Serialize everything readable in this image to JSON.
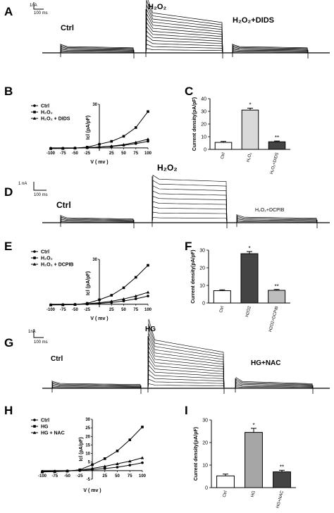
{
  "panel_letters": {
    "A": "A",
    "B": "B",
    "C": "C",
    "D": "D",
    "E": "E",
    "F": "F",
    "G": "G",
    "H": "H",
    "I": "I"
  },
  "traces": {
    "A": {
      "scale_current": "1nA",
      "scale_time": "100 ms",
      "ctrl": "Ctrl",
      "mid": "H₂O₂",
      "right": "H₂O₂+DIDS"
    },
    "D": {
      "scale_current": "1 nA",
      "scale_time": "100 ms",
      "ctrl": "Ctrl",
      "mid": "H₂O₂",
      "right": "H₂O₂+DCPIB"
    },
    "G": {
      "scale_current": "1nA",
      "scale_time": "100 ms",
      "ctrl": "Ctrl",
      "mid": "HG",
      "right": "HG+NAC"
    }
  },
  "chart_data": [
    {
      "panel": "B",
      "type": "line",
      "xlabel": "V ( mv )",
      "ylabel": "Icl (pA/pF)",
      "xlim": [
        -100,
        100
      ],
      "ylim": [
        -2,
        30
      ],
      "x_ticks": [
        "-100",
        "-75",
        "-50",
        "-25",
        "",
        "25",
        "50",
        "75",
        "100"
      ],
      "y_ticks": [
        "30"
      ],
      "x": [
        -100,
        -75,
        -50,
        -25,
        0,
        25,
        50,
        75,
        100
      ],
      "series": [
        {
          "name": "Ctrl",
          "marker": "circle",
          "values": [
            -0.2,
            -0.2,
            -0.1,
            0.2,
            0.5,
            1.0,
            1.8,
            3.0,
            4.5
          ]
        },
        {
          "name": "H₂O₂",
          "marker": "square",
          "values": [
            -0.5,
            -0.4,
            -0.2,
            0.5,
            2.5,
            4.5,
            8.0,
            14.0,
            25.0
          ]
        },
        {
          "name": "H₂O₂ + DIDS",
          "marker": "triangle",
          "values": [
            -0.3,
            -0.3,
            -0.1,
            0.2,
            0.6,
            1.2,
            2.2,
            3.8,
            6.0
          ]
        }
      ]
    },
    {
      "panel": "C",
      "type": "bar",
      "ylabel": "Current density(pA/pF)",
      "ylim": [
        0,
        40
      ],
      "y_ticks": [
        "0",
        "10",
        "20",
        "30",
        "40"
      ],
      "categories": [
        "Ctrl",
        "H₂O₂",
        "H₂O₂+DIDS"
      ],
      "values": [
        5.5,
        31,
        6
      ],
      "errors": [
        0.8,
        1.5,
        0.6
      ],
      "sig": [
        "",
        "*",
        "**"
      ],
      "colors": [
        "#ffffff",
        "#d9d9d9",
        "#444444"
      ]
    },
    {
      "panel": "E",
      "type": "line",
      "xlabel": "V ( mv )",
      "ylabel": "Icl (pA/pF)",
      "xlim": [
        -100,
        100
      ],
      "ylim": [
        -2,
        30
      ],
      "x_ticks": [
        "-100",
        "-75",
        "-50",
        "-25",
        "",
        "25",
        "50",
        "75",
        "100"
      ],
      "y_ticks": [
        "30"
      ],
      "x": [
        -100,
        -75,
        -50,
        -25,
        0,
        25,
        50,
        75,
        100
      ],
      "series": [
        {
          "name": "Ctrl",
          "marker": "circle",
          "values": [
            -0.3,
            -0.2,
            -0.1,
            0.2,
            0.6,
            1.2,
            2.2,
            3.6,
            5.5
          ]
        },
        {
          "name": "H₂O₂",
          "marker": "square",
          "values": [
            -0.5,
            -0.4,
            -0.2,
            0.6,
            3.0,
            6.0,
            11.0,
            18.0,
            26.0
          ]
        },
        {
          "name": "H₂O₂ + DCPIB",
          "marker": "triangle",
          "values": [
            -0.3,
            -0.3,
            -0.1,
            0.3,
            1.0,
            2.0,
            3.5,
            5.5,
            8.0
          ]
        }
      ]
    },
    {
      "panel": "F",
      "type": "bar",
      "ylabel": "Current density(pA/pF)",
      "ylim": [
        0,
        30
      ],
      "y_ticks": [
        "0",
        "10",
        "20",
        "30"
      ],
      "categories": [
        "Ctrl",
        "H2O2",
        "H2O2+DCPIB"
      ],
      "values": [
        7,
        28,
        7.2
      ],
      "errors": [
        0.5,
        1.2,
        0.5
      ],
      "sig": [
        "",
        "*",
        "**"
      ],
      "colors": [
        "#ffffff",
        "#444444",
        "#bdbdbd"
      ]
    },
    {
      "panel": "H",
      "type": "line",
      "xlabel": "V ( mv )",
      "ylabel": "Icl (pA/pF)",
      "xlim": [
        -100,
        100
      ],
      "ylim": [
        -5,
        30
      ],
      "x_ticks": [
        "-100",
        "-75",
        "-50",
        "-25",
        "",
        "25",
        "50",
        "75",
        "100"
      ],
      "y_ticks": [
        "-5",
        "5",
        "10",
        "15",
        "20",
        "25",
        "30"
      ],
      "x": [
        -100,
        -75,
        -50,
        -25,
        0,
        25,
        50,
        75,
        100
      ],
      "series": [
        {
          "name": "Ctrl",
          "marker": "circle",
          "values": [
            -0.4,
            -0.3,
            -0.2,
            0.1,
            0.6,
            1.2,
            2.0,
            3.2,
            4.6
          ]
        },
        {
          "name": "HG",
          "marker": "square",
          "values": [
            -0.8,
            -0.6,
            -0.3,
            0.5,
            3.5,
            7.0,
            11.5,
            18.0,
            25.5
          ]
        },
        {
          "name": "HG + NAC",
          "marker": "triangle",
          "values": [
            -0.5,
            -0.4,
            -0.2,
            0.3,
            1.3,
            2.5,
            4.0,
            5.5,
            7.5
          ]
        }
      ]
    },
    {
      "panel": "I",
      "type": "bar",
      "ylabel": "Current density(pA/pF)",
      "ylim": [
        0,
        30
      ],
      "y_ticks": [
        "0",
        "10",
        "20",
        "30"
      ],
      "categories": [
        "Ctrl",
        "HG",
        "HG+NAC"
      ],
      "values": [
        5.2,
        24.5,
        7
      ],
      "errors": [
        0.8,
        1.8,
        0.7
      ],
      "sig": [
        "",
        "*",
        "**"
      ],
      "colors": [
        "#ffffff",
        "#a6a6a6",
        "#444444"
      ]
    }
  ]
}
